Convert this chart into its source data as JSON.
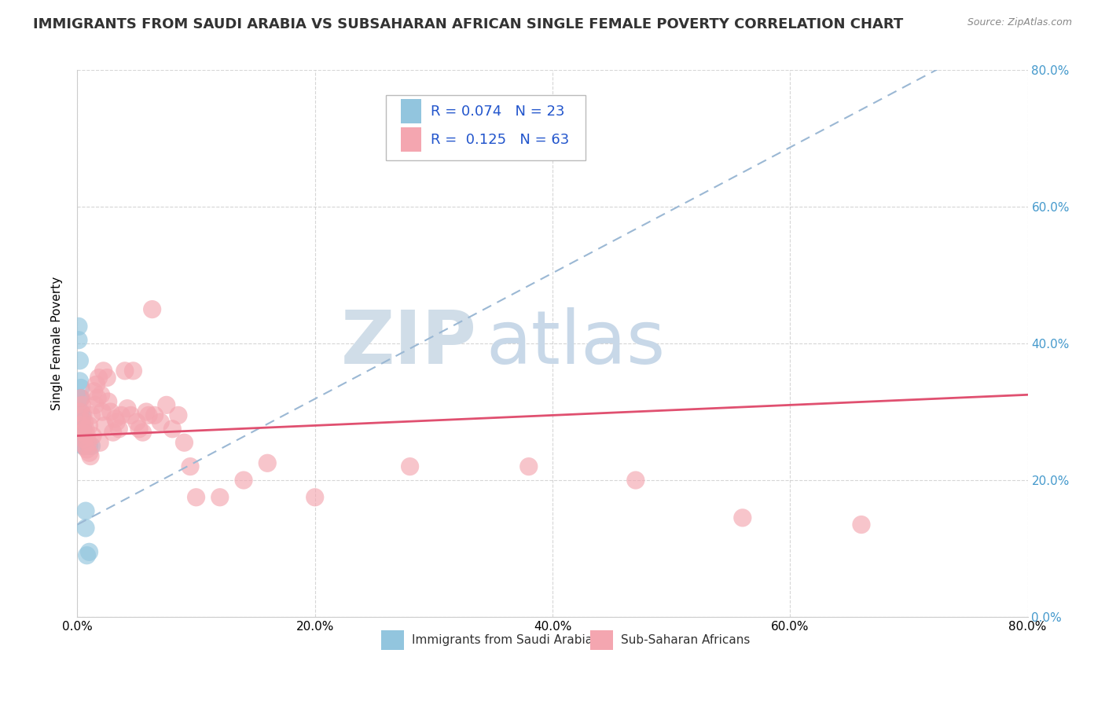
{
  "title": "IMMIGRANTS FROM SAUDI ARABIA VS SUBSAHARAN AFRICAN SINGLE FEMALE POVERTY CORRELATION CHART",
  "source": "Source: ZipAtlas.com",
  "ylabel": "Single Female Poverty",
  "xmin": 0.0,
  "xmax": 0.8,
  "ymin": 0.0,
  "ymax": 0.8,
  "ytick_labels": [
    "0.0%",
    "20.0%",
    "40.0%",
    "60.0%",
    "80.0%"
  ],
  "ytick_values": [
    0.0,
    0.2,
    0.4,
    0.6,
    0.8
  ],
  "xtick_labels": [
    "0.0%",
    "20.0%",
    "40.0%",
    "60.0%",
    "80.0%"
  ],
  "xtick_values": [
    0.0,
    0.2,
    0.4,
    0.6,
    0.8
  ],
  "series1_name": "Immigrants from Saudi Arabia",
  "series1_color": "#92C5DE",
  "series1_R": 0.074,
  "series1_N": 23,
  "series1_x": [
    0.001,
    0.001,
    0.002,
    0.002,
    0.002,
    0.003,
    0.003,
    0.003,
    0.004,
    0.004,
    0.004,
    0.004,
    0.005,
    0.005,
    0.005,
    0.006,
    0.006,
    0.007,
    0.007,
    0.008,
    0.01,
    0.01,
    0.012
  ],
  "series1_y": [
    0.425,
    0.405,
    0.375,
    0.345,
    0.32,
    0.335,
    0.32,
    0.3,
    0.295,
    0.285,
    0.27,
    0.265,
    0.275,
    0.26,
    0.25,
    0.26,
    0.25,
    0.155,
    0.13,
    0.09,
    0.25,
    0.095,
    0.25
  ],
  "series2_name": "Sub-Saharan Africans",
  "series2_color": "#F4A6B0",
  "series2_R": 0.125,
  "series2_N": 63,
  "series2_x": [
    0.002,
    0.003,
    0.003,
    0.004,
    0.004,
    0.005,
    0.005,
    0.006,
    0.006,
    0.007,
    0.008,
    0.008,
    0.009,
    0.01,
    0.01,
    0.011,
    0.012,
    0.013,
    0.014,
    0.015,
    0.016,
    0.017,
    0.018,
    0.019,
    0.02,
    0.021,
    0.022,
    0.023,
    0.025,
    0.026,
    0.028,
    0.03,
    0.032,
    0.033,
    0.035,
    0.037,
    0.04,
    0.042,
    0.045,
    0.047,
    0.05,
    0.052,
    0.055,
    0.058,
    0.06,
    0.063,
    0.065,
    0.07,
    0.075,
    0.08,
    0.085,
    0.09,
    0.095,
    0.1,
    0.12,
    0.14,
    0.16,
    0.2,
    0.28,
    0.38,
    0.47,
    0.56,
    0.66
  ],
  "series2_y": [
    0.3,
    0.32,
    0.28,
    0.31,
    0.27,
    0.295,
    0.26,
    0.285,
    0.25,
    0.275,
    0.245,
    0.265,
    0.255,
    0.24,
    0.28,
    0.235,
    0.295,
    0.265,
    0.33,
    0.31,
    0.34,
    0.32,
    0.35,
    0.255,
    0.325,
    0.3,
    0.36,
    0.28,
    0.35,
    0.315,
    0.3,
    0.27,
    0.29,
    0.285,
    0.275,
    0.295,
    0.36,
    0.305,
    0.295,
    0.36,
    0.285,
    0.275,
    0.27,
    0.3,
    0.295,
    0.45,
    0.295,
    0.285,
    0.31,
    0.275,
    0.295,
    0.255,
    0.22,
    0.175,
    0.175,
    0.2,
    0.225,
    0.175,
    0.22,
    0.22,
    0.2,
    0.145,
    0.135
  ],
  "bg_color": "#FFFFFF",
  "grid_color": "#CCCCCC",
  "trendline1_color": "#9BB8D4",
  "trendline2_color": "#E05070",
  "trendline1_slope": 0.92,
  "trendline1_intercept": 0.135,
  "trendline2_slope": 0.075,
  "trendline2_intercept": 0.265,
  "legend_R_color": "#2255CC",
  "watermark_color": "#C8D8E8",
  "title_fontsize": 13,
  "legend_fontsize": 13,
  "axis_label_fontsize": 11,
  "tick_fontsize": 11
}
